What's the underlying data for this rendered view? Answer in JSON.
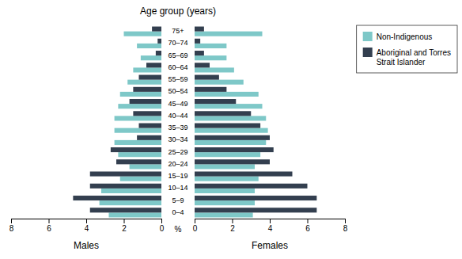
{
  "chart_data": [
    {
      "type": "bar",
      "orientation": "horizontal",
      "title": "Age group (years)",
      "xlabel": "Males",
      "annotations": [
        "%"
      ],
      "categories": [
        "75+",
        "70–74",
        "65–69",
        "60–64",
        "55–59",
        "50–54",
        "45–49",
        "40–44",
        "35–39",
        "30–34",
        "25–29",
        "20–24",
        "15–19",
        "10–14",
        "5–9",
        "0–4"
      ],
      "series": [
        {
          "color": "#7ec8c8",
          "values": [
            2.0,
            1.3,
            1.1,
            1.5,
            1.8,
            2.2,
            2.3,
            2.5,
            2.5,
            2.5,
            2.3,
            1.7,
            2.2,
            3.2,
            3.3,
            2.8
          ]
        },
        {
          "color": "#333f4f",
          "values": [
            0.5,
            0.2,
            0.3,
            0.8,
            1.2,
            1.5,
            1.7,
            1.5,
            1.2,
            1.3,
            2.7,
            2.4,
            3.8,
            3.8,
            4.7,
            3.8
          ]
        }
      ],
      "xlim": [
        8,
        0
      ],
      "xticks": [
        0,
        2,
        4,
        6,
        8
      ]
    },
    {
      "type": "bar",
      "orientation": "horizontal",
      "xlabel": "Females",
      "categories": [
        "75+",
        "70–74",
        "65–69",
        "60–64",
        "55–59",
        "50–54",
        "45–49",
        "40–44",
        "35–39",
        "30–34",
        "25–29",
        "20–24",
        "15–19",
        "10–14",
        "5–9",
        "0–4"
      ],
      "series": [
        {
          "name": "Non-Indigenous",
          "color": "#7ec8c8",
          "values": [
            3.6,
            1.7,
            1.7,
            2.1,
            2.6,
            3.4,
            3.6,
            3.8,
            3.9,
            3.8,
            3.5,
            3.2,
            3.4,
            3.2,
            3.2,
            3.1
          ]
        },
        {
          "name": "Aboriginal and Torres\nStrait Islander",
          "color": "#333f4f",
          "values": [
            0.5,
            0.3,
            0.5,
            0.8,
            1.3,
            1.7,
            2.2,
            3.0,
            3.5,
            4.0,
            4.2,
            4.0,
            5.2,
            6.0,
            6.5,
            6.5
          ]
        }
      ],
      "legend": "upper right",
      "xlim": [
        0,
        8
      ],
      "xticks": [
        0,
        2,
        4,
        6,
        8
      ]
    }
  ]
}
